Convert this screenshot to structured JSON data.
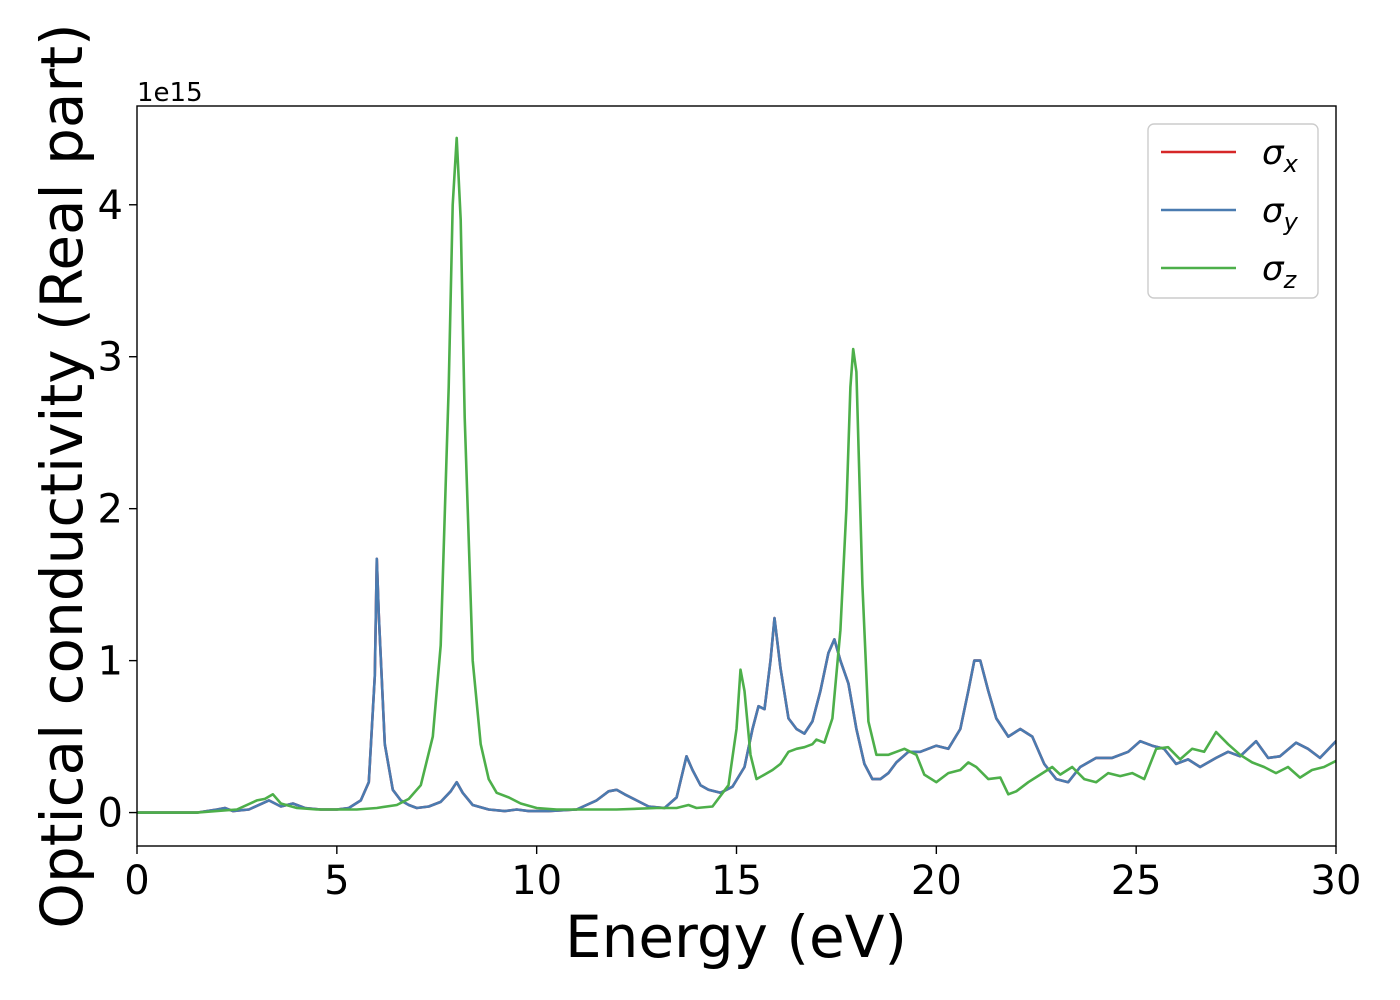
{
  "chart_data": {
    "type": "line",
    "xlabel": "Energy (eV)",
    "ylabel": "Optical conductivity (Real part)",
    "y_offset_label": "1e15",
    "y_scale_factor": 1000000000000000.0,
    "xlim": [
      0,
      30
    ],
    "ylim": [
      -0.22,
      4.65
    ],
    "x_ticks": [
      0,
      5,
      10,
      15,
      20,
      25,
      30
    ],
    "y_ticks": [
      0,
      1,
      2,
      3,
      4
    ],
    "grid": false,
    "legend_position": "top-right",
    "series": [
      {
        "name": "σ_x",
        "label_main": "σ",
        "label_sub": "x",
        "color": "#d62728",
        "x": [
          0,
          1.5,
          2.0,
          2.2,
          2.4,
          2.8,
          3.3,
          3.6,
          3.9,
          4.2,
          4.6,
          5.0,
          5.3,
          5.6,
          5.8,
          5.95,
          6.0,
          6.05,
          6.2,
          6.4,
          6.6,
          6.8,
          7.0,
          7.3,
          7.6,
          7.85,
          8.0,
          8.15,
          8.4,
          8.8,
          9.2,
          9.5,
          9.8,
          10.3,
          11.0,
          11.5,
          11.8,
          12.0,
          12.2,
          12.5,
          12.8,
          13.2,
          13.5,
          13.75,
          13.9,
          14.1,
          14.3,
          14.6,
          14.9,
          15.2,
          15.4,
          15.55,
          15.7,
          15.85,
          15.95,
          16.1,
          16.3,
          16.5,
          16.7,
          16.9,
          17.1,
          17.3,
          17.45,
          17.6,
          17.8,
          18.0,
          18.2,
          18.4,
          18.6,
          18.8,
          19.0,
          19.3,
          19.6,
          20.0,
          20.3,
          20.6,
          20.8,
          20.95,
          21.1,
          21.3,
          21.5,
          21.8,
          22.1,
          22.4,
          22.7,
          23.0,
          23.3,
          23.6,
          24.0,
          24.4,
          24.8,
          25.1,
          25.4,
          25.7,
          26.0,
          26.3,
          26.6,
          27.0,
          27.3,
          27.6,
          28.0,
          28.3,
          28.6,
          29.0,
          29.3,
          29.6,
          30.0
        ],
        "y": [
          0,
          0.0,
          0.02,
          0.03,
          0.01,
          0.02,
          0.08,
          0.04,
          0.06,
          0.03,
          0.02,
          0.02,
          0.03,
          0.08,
          0.2,
          0.9,
          1.67,
          1.3,
          0.45,
          0.15,
          0.08,
          0.05,
          0.03,
          0.04,
          0.07,
          0.14,
          0.2,
          0.13,
          0.05,
          0.02,
          0.01,
          0.02,
          0.01,
          0.01,
          0.02,
          0.08,
          0.14,
          0.15,
          0.12,
          0.08,
          0.04,
          0.03,
          0.1,
          0.37,
          0.28,
          0.18,
          0.15,
          0.13,
          0.17,
          0.3,
          0.55,
          0.7,
          0.68,
          1.0,
          1.28,
          0.95,
          0.62,
          0.55,
          0.52,
          0.6,
          0.8,
          1.05,
          1.14,
          1.0,
          0.85,
          0.55,
          0.32,
          0.22,
          0.22,
          0.26,
          0.33,
          0.4,
          0.4,
          0.44,
          0.42,
          0.55,
          0.8,
          1.0,
          1.0,
          0.8,
          0.62,
          0.5,
          0.55,
          0.5,
          0.32,
          0.22,
          0.2,
          0.3,
          0.36,
          0.36,
          0.4,
          0.47,
          0.44,
          0.42,
          0.32,
          0.35,
          0.3,
          0.36,
          0.4,
          0.37,
          0.47,
          0.36,
          0.37,
          0.46,
          0.42,
          0.36,
          0.47
        ]
      },
      {
        "name": "σ_y",
        "label_main": "σ",
        "label_sub": "y",
        "color": "#4a7bb0",
        "x": [
          0,
          1.5,
          2.0,
          2.2,
          2.4,
          2.8,
          3.3,
          3.6,
          3.9,
          4.2,
          4.6,
          5.0,
          5.3,
          5.6,
          5.8,
          5.95,
          6.0,
          6.05,
          6.2,
          6.4,
          6.6,
          6.8,
          7.0,
          7.3,
          7.6,
          7.85,
          8.0,
          8.15,
          8.4,
          8.8,
          9.2,
          9.5,
          9.8,
          10.3,
          11.0,
          11.5,
          11.8,
          12.0,
          12.2,
          12.5,
          12.8,
          13.2,
          13.5,
          13.75,
          13.9,
          14.1,
          14.3,
          14.6,
          14.9,
          15.2,
          15.4,
          15.55,
          15.7,
          15.85,
          15.95,
          16.1,
          16.3,
          16.5,
          16.7,
          16.9,
          17.1,
          17.3,
          17.45,
          17.6,
          17.8,
          18.0,
          18.2,
          18.4,
          18.6,
          18.8,
          19.0,
          19.3,
          19.6,
          20.0,
          20.3,
          20.6,
          20.8,
          20.95,
          21.1,
          21.3,
          21.5,
          21.8,
          22.1,
          22.4,
          22.7,
          23.0,
          23.3,
          23.6,
          24.0,
          24.4,
          24.8,
          25.1,
          25.4,
          25.7,
          26.0,
          26.3,
          26.6,
          27.0,
          27.3,
          27.6,
          28.0,
          28.3,
          28.6,
          29.0,
          29.3,
          29.6,
          30.0
        ],
        "y": [
          0,
          0.0,
          0.02,
          0.03,
          0.01,
          0.02,
          0.08,
          0.04,
          0.06,
          0.03,
          0.02,
          0.02,
          0.03,
          0.08,
          0.2,
          0.9,
          1.67,
          1.3,
          0.45,
          0.15,
          0.08,
          0.05,
          0.03,
          0.04,
          0.07,
          0.14,
          0.2,
          0.13,
          0.05,
          0.02,
          0.01,
          0.02,
          0.01,
          0.01,
          0.02,
          0.08,
          0.14,
          0.15,
          0.12,
          0.08,
          0.04,
          0.03,
          0.1,
          0.37,
          0.28,
          0.18,
          0.15,
          0.13,
          0.17,
          0.3,
          0.55,
          0.7,
          0.68,
          1.0,
          1.28,
          0.95,
          0.62,
          0.55,
          0.52,
          0.6,
          0.8,
          1.05,
          1.14,
          1.0,
          0.85,
          0.55,
          0.32,
          0.22,
          0.22,
          0.26,
          0.33,
          0.4,
          0.4,
          0.44,
          0.42,
          0.55,
          0.8,
          1.0,
          1.0,
          0.8,
          0.62,
          0.5,
          0.55,
          0.5,
          0.32,
          0.22,
          0.2,
          0.3,
          0.36,
          0.36,
          0.4,
          0.47,
          0.44,
          0.42,
          0.32,
          0.35,
          0.3,
          0.36,
          0.4,
          0.37,
          0.47,
          0.36,
          0.37,
          0.46,
          0.42,
          0.36,
          0.47
        ]
      },
      {
        "name": "σ_z",
        "label_main": "σ",
        "label_sub": "z",
        "color": "#4daf4a",
        "x": [
          0,
          1.5,
          2.5,
          3.0,
          3.2,
          3.4,
          3.6,
          4.0,
          4.5,
          5.0,
          5.5,
          6.0,
          6.5,
          6.8,
          7.1,
          7.4,
          7.6,
          7.8,
          7.9,
          8.0,
          8.1,
          8.2,
          8.4,
          8.6,
          8.8,
          9.0,
          9.3,
          9.6,
          10.0,
          10.5,
          11.0,
          12.0,
          13.0,
          13.5,
          13.8,
          14.0,
          14.4,
          14.8,
          15.0,
          15.1,
          15.2,
          15.35,
          15.5,
          15.7,
          15.9,
          16.1,
          16.3,
          16.5,
          16.7,
          16.9,
          17.0,
          17.2,
          17.4,
          17.6,
          17.75,
          17.85,
          17.92,
          18.0,
          18.15,
          18.3,
          18.5,
          18.8,
          19.0,
          19.2,
          19.5,
          19.7,
          20.0,
          20.3,
          20.6,
          20.8,
          21.0,
          21.3,
          21.6,
          21.8,
          22.0,
          22.3,
          22.6,
          22.9,
          23.1,
          23.4,
          23.7,
          24.0,
          24.3,
          24.6,
          24.9,
          25.2,
          25.5,
          25.8,
          26.1,
          26.4,
          26.7,
          27.0,
          27.3,
          27.6,
          27.9,
          28.2,
          28.5,
          28.8,
          29.1,
          29.4,
          29.7,
          30.0
        ],
        "y": [
          0,
          0.0,
          0.02,
          0.08,
          0.09,
          0.12,
          0.06,
          0.03,
          0.02,
          0.02,
          0.02,
          0.03,
          0.05,
          0.09,
          0.18,
          0.5,
          1.1,
          2.8,
          4.0,
          4.44,
          3.9,
          2.6,
          1.0,
          0.45,
          0.22,
          0.13,
          0.1,
          0.06,
          0.03,
          0.02,
          0.02,
          0.02,
          0.03,
          0.03,
          0.05,
          0.03,
          0.04,
          0.18,
          0.55,
          0.94,
          0.8,
          0.38,
          0.22,
          0.25,
          0.28,
          0.32,
          0.4,
          0.42,
          0.43,
          0.45,
          0.48,
          0.46,
          0.62,
          1.2,
          2.0,
          2.8,
          3.05,
          2.9,
          1.5,
          0.6,
          0.38,
          0.38,
          0.4,
          0.42,
          0.38,
          0.25,
          0.2,
          0.26,
          0.28,
          0.33,
          0.3,
          0.22,
          0.23,
          0.12,
          0.14,
          0.2,
          0.25,
          0.3,
          0.25,
          0.3,
          0.22,
          0.2,
          0.26,
          0.24,
          0.26,
          0.22,
          0.42,
          0.43,
          0.35,
          0.42,
          0.4,
          0.53,
          0.45,
          0.38,
          0.33,
          0.3,
          0.26,
          0.3,
          0.23,
          0.28,
          0.3,
          0.34
        ]
      }
    ]
  }
}
